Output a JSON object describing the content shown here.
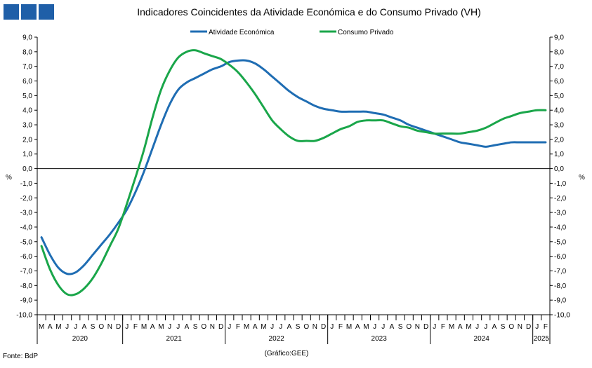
{
  "brand_squares_color": "#1f5fa8",
  "chart_data": {
    "type": "line",
    "title": "Indicadores Coincidentes da Atividade Económica e do Consumo Privado (VH)",
    "ylabel_left": "%",
    "ylabel_right": "%",
    "ylim": [
      -10,
      9
    ],
    "ytick_step": 1,
    "ytick_labels": [
      "9,0",
      "8,0",
      "7,0",
      "6,0",
      "5,0",
      "4,0",
      "3,0",
      "2,0",
      "1,0",
      "0,0",
      "-1,0",
      "-2,0",
      "-3,0",
      "-4,0",
      "-5,0",
      "-6,0",
      "-7,0",
      "-8,0",
      "-9,0",
      "-10,0"
    ],
    "ytick_labels_right": [
      "9,0",
      "8,0",
      "7,0",
      "6,0",
      "5,0",
      "4,0",
      "3,0",
      "2,0",
      "1,0",
      "0,0",
      "-1,0",
      "-2,0",
      "-3,0",
      "-4,0",
      "-5,0",
      "-6,0",
      "-7,0",
      "-8,0",
      "-9,0",
      "-10,0"
    ],
    "months": [
      "M",
      "A",
      "M",
      "J",
      "J",
      "A",
      "S",
      "O",
      "N",
      "D",
      "J",
      "F",
      "M",
      "A",
      "M",
      "J",
      "J",
      "A",
      "S",
      "O",
      "N",
      "D",
      "J",
      "F",
      "M",
      "A",
      "M",
      "J",
      "J",
      "A",
      "S",
      "O",
      "N",
      "D",
      "J",
      "F",
      "M",
      "A",
      "M",
      "J",
      "J",
      "A",
      "S",
      "O",
      "N",
      "D",
      "J",
      "F",
      "M",
      "A",
      "M",
      "J",
      "J",
      "A",
      "S",
      "O",
      "N",
      "D",
      "J",
      "F"
    ],
    "years": [
      {
        "label": "2020",
        "start": 0,
        "end": 10
      },
      {
        "label": "2021",
        "start": 10,
        "end": 22
      },
      {
        "label": "2022",
        "start": 22,
        "end": 34
      },
      {
        "label": "2023",
        "start": 34,
        "end": 46
      },
      {
        "label": "2024",
        "start": 46,
        "end": 58
      },
      {
        "label": "2025",
        "start": 58,
        "end": 60
      }
    ],
    "legend_position": "top-center",
    "series": [
      {
        "name": "Atividade Económica",
        "color": "#1f6db3",
        "values": [
          -4.7,
          -5.9,
          -6.8,
          -7.2,
          -7.1,
          -6.6,
          -5.9,
          -5.2,
          -4.5,
          -3.7,
          -2.8,
          -1.6,
          -0.2,
          1.4,
          3.0,
          4.4,
          5.4,
          5.9,
          6.2,
          6.5,
          6.8,
          7.0,
          7.3,
          7.4,
          7.4,
          7.2,
          6.8,
          6.3,
          5.8,
          5.3,
          4.9,
          4.6,
          4.3,
          4.1,
          4.0,
          3.9,
          3.9,
          3.9,
          3.9,
          3.8,
          3.7,
          3.5,
          3.3,
          3.0,
          2.8,
          2.6,
          2.4,
          2.2,
          2.0,
          1.8,
          1.7,
          1.6,
          1.5,
          1.6,
          1.7,
          1.8,
          1.8,
          1.8,
          1.8,
          1.8
        ]
      },
      {
        "name": "Consumo Privado",
        "color": "#1aa64a",
        "values": [
          -5.3,
          -6.9,
          -8.0,
          -8.6,
          -8.6,
          -8.2,
          -7.5,
          -6.5,
          -5.3,
          -4.1,
          -2.4,
          -0.6,
          1.3,
          3.5,
          5.4,
          6.7,
          7.6,
          8.0,
          8.1,
          7.9,
          7.7,
          7.5,
          7.1,
          6.6,
          5.9,
          5.1,
          4.2,
          3.3,
          2.7,
          2.2,
          1.9,
          1.9,
          1.9,
          2.1,
          2.4,
          2.7,
          2.9,
          3.2,
          3.3,
          3.3,
          3.3,
          3.1,
          2.9,
          2.8,
          2.6,
          2.5,
          2.4,
          2.4,
          2.4,
          2.4,
          2.5,
          2.6,
          2.8,
          3.1,
          3.4,
          3.6,
          3.8,
          3.9,
          4.0,
          4.0
        ]
      }
    ]
  },
  "notes": {
    "source": "Fonte: BdP",
    "credit": "(Gráfico:GEE)"
  }
}
